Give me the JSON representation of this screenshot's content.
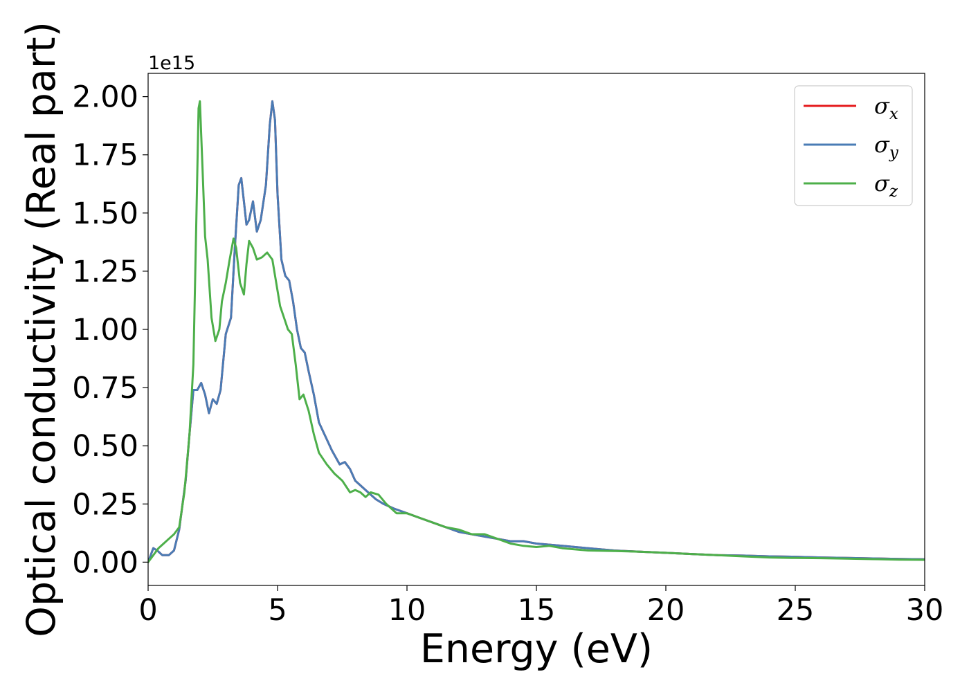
{
  "chart_data": {
    "type": "line",
    "xlabel": "Energy (eV)",
    "ylabel": "Optical conductivity (Real part)",
    "y_offset_label": "1e15",
    "xlim": [
      0,
      30
    ],
    "ylim": [
      -0.1,
      2.1
    ],
    "x_ticks": [
      0,
      5,
      10,
      15,
      20,
      25,
      30
    ],
    "x_tick_labels": [
      "0",
      "5",
      "10",
      "15",
      "20",
      "25",
      "30"
    ],
    "y_ticks": [
      0.0,
      0.25,
      0.5,
      0.75,
      1.0,
      1.25,
      1.5,
      1.75,
      2.0
    ],
    "y_tick_labels": [
      "0.00",
      "0.25",
      "0.50",
      "0.75",
      "1.00",
      "1.25",
      "1.50",
      "1.75",
      "2.00"
    ],
    "grid": false,
    "legend_position": "top-right",
    "series": [
      {
        "name": "σ",
        "subscript": "x",
        "color": "#e41a1c",
        "x": [
          0,
          0.2,
          0.35,
          0.55,
          0.8,
          1.0,
          1.2,
          1.45,
          1.6,
          1.75,
          1.9,
          2.05,
          2.2,
          2.35,
          2.5,
          2.65,
          2.8,
          3.0,
          3.2,
          3.35,
          3.5,
          3.6,
          3.7,
          3.8,
          3.9,
          4.05,
          4.2,
          4.35,
          4.55,
          4.7,
          4.8,
          4.9,
          5.0,
          5.15,
          5.3,
          5.45,
          5.6,
          5.75,
          5.9,
          6.05,
          6.2,
          6.4,
          6.6,
          6.85,
          7.1,
          7.4,
          7.6,
          7.8,
          8.0,
          8.2,
          8.5,
          8.8,
          9.1,
          9.5,
          10.0,
          10.5,
          11.0,
          11.5,
          12.0,
          12.5,
          13.0,
          13.5,
          14.0,
          14.5,
          15.0,
          15.5,
          16.0,
          16.5,
          17.0,
          18.0,
          19.0,
          20.0,
          21.0,
          22.0,
          23.0,
          24.0,
          25.0,
          26.0,
          27.0,
          28.0,
          29.0,
          30.0
        ],
        "y": [
          0.0,
          0.06,
          0.05,
          0.03,
          0.03,
          0.05,
          0.14,
          0.35,
          0.55,
          0.74,
          0.74,
          0.77,
          0.72,
          0.64,
          0.7,
          0.68,
          0.74,
          0.98,
          1.05,
          1.35,
          1.62,
          1.65,
          1.55,
          1.45,
          1.47,
          1.55,
          1.42,
          1.47,
          1.62,
          1.88,
          1.98,
          1.9,
          1.58,
          1.3,
          1.23,
          1.21,
          1.12,
          1.0,
          0.92,
          0.9,
          0.82,
          0.72,
          0.6,
          0.54,
          0.48,
          0.42,
          0.43,
          0.4,
          0.35,
          0.33,
          0.3,
          0.27,
          0.25,
          0.23,
          0.21,
          0.19,
          0.17,
          0.15,
          0.13,
          0.12,
          0.11,
          0.1,
          0.09,
          0.09,
          0.08,
          0.075,
          0.07,
          0.065,
          0.06,
          0.05,
          0.045,
          0.04,
          0.035,
          0.03,
          0.028,
          0.025,
          0.023,
          0.02,
          0.018,
          0.016,
          0.014,
          0.012
        ]
      },
      {
        "name": "σ",
        "subscript": "y",
        "color": "#4a7cb5",
        "x": [
          0,
          0.2,
          0.35,
          0.55,
          0.8,
          1.0,
          1.2,
          1.45,
          1.6,
          1.75,
          1.9,
          2.05,
          2.2,
          2.35,
          2.5,
          2.65,
          2.8,
          3.0,
          3.2,
          3.35,
          3.5,
          3.6,
          3.7,
          3.8,
          3.9,
          4.05,
          4.2,
          4.35,
          4.55,
          4.7,
          4.8,
          4.9,
          5.0,
          5.15,
          5.3,
          5.45,
          5.6,
          5.75,
          5.9,
          6.05,
          6.2,
          6.4,
          6.6,
          6.85,
          7.1,
          7.4,
          7.6,
          7.8,
          8.0,
          8.2,
          8.5,
          8.8,
          9.1,
          9.5,
          10.0,
          10.5,
          11.0,
          11.5,
          12.0,
          12.5,
          13.0,
          13.5,
          14.0,
          14.5,
          15.0,
          15.5,
          16.0,
          16.5,
          17.0,
          18.0,
          19.0,
          20.0,
          21.0,
          22.0,
          23.0,
          24.0,
          25.0,
          26.0,
          27.0,
          28.0,
          29.0,
          30.0
        ],
        "y": [
          0.0,
          0.06,
          0.05,
          0.03,
          0.03,
          0.05,
          0.14,
          0.35,
          0.55,
          0.74,
          0.74,
          0.77,
          0.72,
          0.64,
          0.7,
          0.68,
          0.74,
          0.98,
          1.05,
          1.35,
          1.62,
          1.65,
          1.55,
          1.45,
          1.47,
          1.55,
          1.42,
          1.47,
          1.62,
          1.88,
          1.98,
          1.9,
          1.58,
          1.3,
          1.23,
          1.21,
          1.12,
          1.0,
          0.92,
          0.9,
          0.82,
          0.72,
          0.6,
          0.54,
          0.48,
          0.42,
          0.43,
          0.4,
          0.35,
          0.33,
          0.3,
          0.27,
          0.25,
          0.23,
          0.21,
          0.19,
          0.17,
          0.15,
          0.13,
          0.12,
          0.11,
          0.1,
          0.09,
          0.09,
          0.08,
          0.075,
          0.07,
          0.065,
          0.06,
          0.05,
          0.045,
          0.04,
          0.035,
          0.03,
          0.028,
          0.025,
          0.023,
          0.02,
          0.018,
          0.016,
          0.014,
          0.012
        ]
      },
      {
        "name": "σ",
        "subscript": "z",
        "color": "#4daf4a",
        "x": [
          0,
          0.2,
          0.4,
          0.6,
          0.8,
          1.0,
          1.2,
          1.4,
          1.6,
          1.75,
          1.85,
          1.95,
          2.0,
          2.1,
          2.2,
          2.3,
          2.45,
          2.6,
          2.75,
          2.85,
          3.0,
          3.15,
          3.3,
          3.4,
          3.55,
          3.7,
          3.8,
          3.9,
          4.05,
          4.2,
          4.4,
          4.6,
          4.8,
          4.95,
          5.1,
          5.25,
          5.4,
          5.55,
          5.7,
          5.85,
          6.0,
          6.2,
          6.4,
          6.6,
          6.9,
          7.2,
          7.5,
          7.8,
          8.0,
          8.2,
          8.4,
          8.6,
          8.9,
          9.2,
          9.6,
          10.0,
          10.5,
          11.0,
          11.5,
          12.0,
          12.5,
          13.0,
          13.5,
          14.0,
          14.5,
          15.0,
          15.5,
          16.0,
          16.5,
          17.0,
          18.0,
          19.0,
          20.0,
          21.0,
          22.0,
          23.0,
          24.0,
          25.0,
          26.0,
          27.0,
          28.0,
          29.0,
          30.0
        ],
        "y": [
          0.0,
          0.03,
          0.06,
          0.08,
          0.1,
          0.12,
          0.15,
          0.3,
          0.55,
          0.85,
          1.4,
          1.95,
          1.98,
          1.7,
          1.4,
          1.3,
          1.05,
          0.95,
          1.0,
          1.12,
          1.2,
          1.3,
          1.39,
          1.35,
          1.2,
          1.15,
          1.28,
          1.38,
          1.35,
          1.3,
          1.31,
          1.33,
          1.3,
          1.2,
          1.1,
          1.05,
          1.0,
          0.98,
          0.85,
          0.7,
          0.72,
          0.65,
          0.55,
          0.47,
          0.42,
          0.38,
          0.35,
          0.3,
          0.31,
          0.3,
          0.28,
          0.3,
          0.29,
          0.25,
          0.21,
          0.21,
          0.19,
          0.17,
          0.15,
          0.14,
          0.12,
          0.12,
          0.1,
          0.08,
          0.07,
          0.065,
          0.07,
          0.06,
          0.055,
          0.05,
          0.048,
          0.045,
          0.04,
          0.035,
          0.03,
          0.025,
          0.02,
          0.018,
          0.017,
          0.015,
          0.013,
          0.011,
          0.01
        ]
      }
    ]
  }
}
